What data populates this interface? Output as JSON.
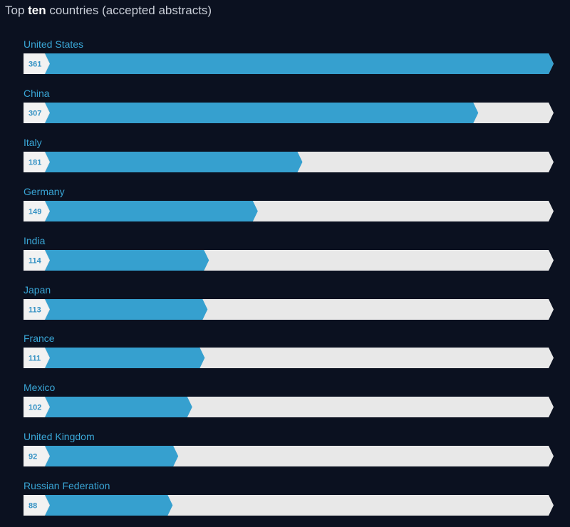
{
  "header": {
    "title_prefix": "Top ",
    "title_bold": "ten",
    "title_suffix": " countries (accepted abstracts)"
  },
  "colors": {
    "background": "#0b1120",
    "bar_fill": "#36a0cf",
    "bar_track": "#e8e8e8",
    "value_badge": "#f2f2f2",
    "value_text": "#3592c4",
    "label_text": "#3aa6d6"
  },
  "chart_data": {
    "type": "bar",
    "orientation": "horizontal",
    "title": "Top ten countries (accepted abstracts)",
    "categories": [
      "United States",
      "China",
      "Italy",
      "Germany",
      "India",
      "Japan",
      "France",
      "Mexico",
      "United Kingdom",
      "Russian Federation"
    ],
    "values": [
      361,
      307,
      181,
      149,
      114,
      113,
      111,
      102,
      92,
      88
    ],
    "xlim": [
      0,
      361
    ],
    "grid": false,
    "legend": "none"
  }
}
